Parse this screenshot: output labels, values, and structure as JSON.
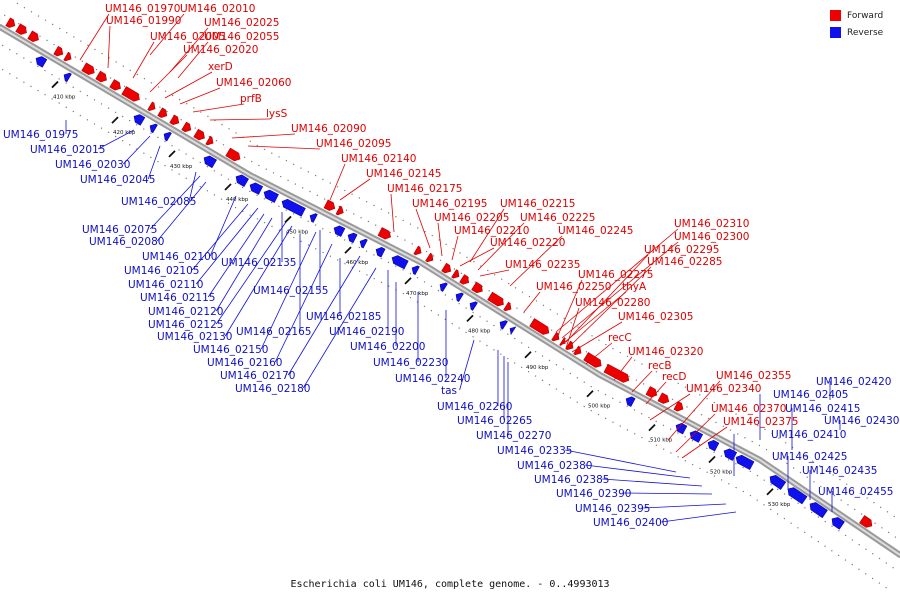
{
  "caption": "Escherichia coli UM146, complete genome. - 0..4993013",
  "legend": [
    {
      "label": "Forward",
      "color": "#ee0000"
    },
    {
      "label": "Reverse",
      "color": "#1010ee"
    }
  ],
  "ticks": [
    "410 kbp",
    "420 kbp",
    "430 kbp",
    "440 kbp",
    "450 kbp",
    "460 kbp",
    "470 kbp",
    "480 kbp",
    "490 kbp",
    "500 kbp",
    "510 kbp",
    "520 kbp",
    "530 kbp"
  ],
  "forward_labels": [
    "UM146_01970",
    "UM146_02010",
    "UM146_01990",
    "UM146_02025",
    "UM146_02005",
    "UM146_02055",
    "UM146_02020",
    "xerD",
    "UM146_02060",
    "prfB",
    "lysS",
    "UM146_02090",
    "UM146_02095",
    "UM146_02140",
    "UM146_02145",
    "UM146_02175",
    "UM146_02195",
    "UM146_02215",
    "UM146_02205",
    "UM146_02225",
    "UM146_02210",
    "UM146_02245",
    "UM146_02220",
    "UM146_02310",
    "UM146_02300",
    "UM146_02295",
    "UM146_02285",
    "UM146_02235",
    "UM146_02275",
    "thyA",
    "UM146_02250",
    "UM146_02280",
    "UM146_02305",
    "recC",
    "UM146_02320",
    "recB",
    "recD",
    "UM146_02355",
    "UM146_02340",
    "UM146_02370",
    "UM146_02375"
  ],
  "reverse_labels": [
    "UM146_01975",
    "UM146_02015",
    "UM146_02030",
    "UM146_02045",
    "UM146_02085",
    "UM146_02075",
    "UM146_02080",
    "UM146_02100",
    "UM146_02105",
    "UM146_02110",
    "UM146_02135",
    "UM146_02115",
    "UM146_02120",
    "UM146_02125",
    "UM146_02155",
    "UM146_02130",
    "UM146_02165",
    "UM146_02185",
    "UM146_02150",
    "UM146_02190",
    "UM146_02160",
    "UM146_02200",
    "UM146_02170",
    "UM146_02230",
    "UM146_02180",
    "UM146_02240",
    "tas",
    "UM146_02260",
    "UM146_02265",
    "UM146_02270",
    "UM146_02335",
    "UM146_02380",
    "UM146_02385",
    "UM146_02390",
    "UM146_02395",
    "UM146_02400",
    "UM146_02420",
    "UM146_02405",
    "UM146_02415",
    "UM146_02430",
    "UM146_02410",
    "UM146_02425",
    "UM146_02435",
    "UM146_02455"
  ]
}
